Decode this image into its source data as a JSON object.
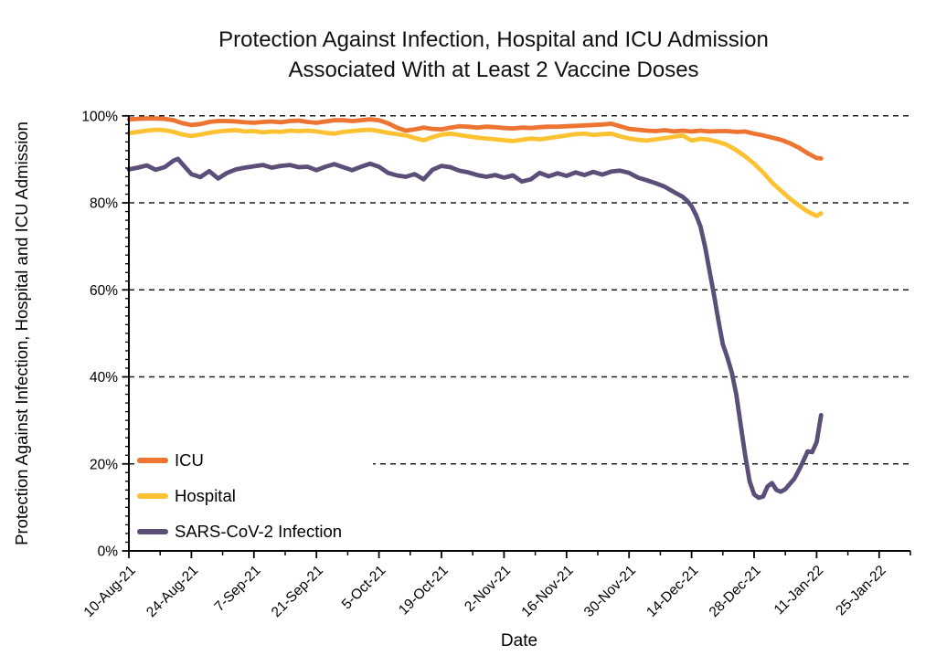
{
  "title": {
    "line1": "Protection Against Infection, Hospital and ICU Admission",
    "line2": "Associated With at Least 2 Vaccine Doses"
  },
  "axes": {
    "x_label": "Date",
    "y_label": "Protection Against Infection, Hospital and ICU Admission"
  },
  "chart_data": {
    "type": "line",
    "title": "Protection Against Infection, Hospital and ICU Admission Associated With at Least 2 Vaccine Doses",
    "xlabel": "Date",
    "ylabel": "Protection Against Infection, Hospital and ICU Admission",
    "x_unit": "days since 10-Aug-2021",
    "ylim": [
      0,
      100
    ],
    "grid": "horizontal dashed lines every 20%",
    "legend_position": "inside lower-left, white background",
    "colors": {
      "axis": "#000000",
      "gridline": "#1f1f1f",
      "background": "#ffffff"
    },
    "y_axis": {
      "ticks": [
        0,
        20,
        40,
        60,
        80,
        100
      ],
      "tick_labels": [
        "0%",
        "20%",
        "40%",
        "60%",
        "80%",
        "100%"
      ],
      "minor_tick_step": 2
    },
    "x_axis": {
      "tick_labels": [
        "10-Aug-21",
        "24-Aug-21",
        "7-Sep-21",
        "21-Sep-21",
        "5-Oct-21",
        "19-Oct-21",
        "2-Nov-21",
        "16-Nov-21",
        "30-Nov-21",
        "14-Dec-21",
        "28-Dec-21",
        "11-Jan-22",
        "25-Jan-22"
      ],
      "tick_days": [
        0,
        14,
        28,
        42,
        56,
        70,
        84,
        98,
        112,
        126,
        140,
        154,
        168
      ],
      "minor_tick_offset_days": 7,
      "axis_end_day": 175
    },
    "series": [
      {
        "name": "ICU",
        "color": "#ED7431",
        "points": [
          [
            0,
            99.2
          ],
          [
            2,
            99.3
          ],
          [
            4,
            99.4
          ],
          [
            6,
            99.4
          ],
          [
            8,
            99.3
          ],
          [
            10,
            99.0
          ],
          [
            12,
            98.3
          ],
          [
            14,
            97.9
          ],
          [
            16,
            98.1
          ],
          [
            18,
            98.6
          ],
          [
            20,
            98.8
          ],
          [
            22,
            98.8
          ],
          [
            24,
            98.7
          ],
          [
            26,
            98.5
          ],
          [
            28,
            98.4
          ],
          [
            30,
            98.6
          ],
          [
            32,
            98.7
          ],
          [
            34,
            98.5
          ],
          [
            36,
            98.8
          ],
          [
            38,
            98.9
          ],
          [
            40,
            98.6
          ],
          [
            42,
            98.4
          ],
          [
            44,
            98.7
          ],
          [
            46,
            99.0
          ],
          [
            48,
            99.0
          ],
          [
            50,
            98.8
          ],
          [
            52,
            99.0
          ],
          [
            54,
            99.2
          ],
          [
            56,
            99.0
          ],
          [
            58,
            98.3
          ],
          [
            60,
            97.3
          ],
          [
            62,
            96.6
          ],
          [
            64,
            96.9
          ],
          [
            66,
            97.3
          ],
          [
            68,
            97.0
          ],
          [
            70,
            96.9
          ],
          [
            72,
            97.3
          ],
          [
            74,
            97.6
          ],
          [
            76,
            97.5
          ],
          [
            78,
            97.3
          ],
          [
            80,
            97.5
          ],
          [
            82,
            97.4
          ],
          [
            84,
            97.2
          ],
          [
            86,
            97.1
          ],
          [
            88,
            97.3
          ],
          [
            90,
            97.2
          ],
          [
            92,
            97.4
          ],
          [
            94,
            97.5
          ],
          [
            96,
            97.5
          ],
          [
            98,
            97.6
          ],
          [
            100,
            97.7
          ],
          [
            102,
            97.8
          ],
          [
            104,
            97.9
          ],
          [
            106,
            98.0
          ],
          [
            108,
            98.2
          ],
          [
            110,
            97.6
          ],
          [
            112,
            97.0
          ],
          [
            114,
            96.8
          ],
          [
            116,
            96.6
          ],
          [
            118,
            96.5
          ],
          [
            120,
            96.7
          ],
          [
            122,
            96.4
          ],
          [
            124,
            96.6
          ],
          [
            126,
            96.4
          ],
          [
            128,
            96.6
          ],
          [
            130,
            96.4
          ],
          [
            132,
            96.5
          ],
          [
            134,
            96.5
          ],
          [
            136,
            96.3
          ],
          [
            138,
            96.4
          ],
          [
            140,
            95.9
          ],
          [
            142,
            95.5
          ],
          [
            144,
            95.0
          ],
          [
            146,
            94.5
          ],
          [
            148,
            93.7
          ],
          [
            150,
            92.7
          ],
          [
            152,
            91.4
          ],
          [
            154,
            90.3
          ],
          [
            155,
            90.2
          ]
        ]
      },
      {
        "name": "Hospital",
        "color": "#FDC233",
        "points": [
          [
            0,
            96.0
          ],
          [
            2,
            96.3
          ],
          [
            4,
            96.6
          ],
          [
            6,
            96.8
          ],
          [
            8,
            96.7
          ],
          [
            10,
            96.3
          ],
          [
            12,
            95.7
          ],
          [
            14,
            95.4
          ],
          [
            16,
            95.7
          ],
          [
            18,
            96.1
          ],
          [
            20,
            96.4
          ],
          [
            22,
            96.6
          ],
          [
            24,
            96.7
          ],
          [
            26,
            96.4
          ],
          [
            28,
            96.5
          ],
          [
            30,
            96.2
          ],
          [
            32,
            96.4
          ],
          [
            34,
            96.3
          ],
          [
            36,
            96.6
          ],
          [
            38,
            96.5
          ],
          [
            40,
            96.6
          ],
          [
            42,
            96.4
          ],
          [
            44,
            96.1
          ],
          [
            46,
            95.9
          ],
          [
            48,
            96.3
          ],
          [
            50,
            96.5
          ],
          [
            52,
            96.7
          ],
          [
            54,
            96.8
          ],
          [
            56,
            96.5
          ],
          [
            58,
            96.1
          ],
          [
            60,
            95.8
          ],
          [
            62,
            95.5
          ],
          [
            64,
            94.9
          ],
          [
            66,
            94.4
          ],
          [
            68,
            95.1
          ],
          [
            70,
            95.7
          ],
          [
            72,
            95.9
          ],
          [
            74,
            95.6
          ],
          [
            76,
            95.3
          ],
          [
            78,
            95.0
          ],
          [
            80,
            94.8
          ],
          [
            82,
            94.6
          ],
          [
            84,
            94.4
          ],
          [
            86,
            94.2
          ],
          [
            88,
            94.5
          ],
          [
            90,
            94.8
          ],
          [
            92,
            94.6
          ],
          [
            94,
            94.9
          ],
          [
            96,
            95.2
          ],
          [
            98,
            95.5
          ],
          [
            100,
            95.8
          ],
          [
            102,
            95.9
          ],
          [
            104,
            95.6
          ],
          [
            106,
            95.8
          ],
          [
            108,
            95.9
          ],
          [
            110,
            95.3
          ],
          [
            112,
            94.8
          ],
          [
            114,
            94.5
          ],
          [
            116,
            94.3
          ],
          [
            118,
            94.6
          ],
          [
            120,
            94.9
          ],
          [
            122,
            95.2
          ],
          [
            124,
            95.5
          ],
          [
            126,
            94.3
          ],
          [
            128,
            94.7
          ],
          [
            130,
            94.5
          ],
          [
            132,
            94.0
          ],
          [
            134,
            93.3
          ],
          [
            136,
            92.1
          ],
          [
            138,
            90.7
          ],
          [
            140,
            89.0
          ],
          [
            142,
            87.0
          ],
          [
            144,
            84.7
          ],
          [
            146,
            82.8
          ],
          [
            148,
            81.0
          ],
          [
            150,
            79.4
          ],
          [
            152,
            78.0
          ],
          [
            154,
            77.0
          ],
          [
            155,
            77.6
          ]
        ]
      },
      {
        "name": "SARS-CoV-2 Infection",
        "color": "#5B4E79",
        "points": [
          [
            0,
            87.7
          ],
          [
            2,
            88.1
          ],
          [
            4,
            88.6
          ],
          [
            6,
            87.6
          ],
          [
            8,
            88.2
          ],
          [
            10,
            89.7
          ],
          [
            11,
            90.1
          ],
          [
            12,
            88.9
          ],
          [
            14,
            86.6
          ],
          [
            16,
            85.9
          ],
          [
            18,
            87.3
          ],
          [
            20,
            85.6
          ],
          [
            22,
            86.9
          ],
          [
            24,
            87.7
          ],
          [
            26,
            88.1
          ],
          [
            28,
            88.4
          ],
          [
            30,
            88.7
          ],
          [
            32,
            88.1
          ],
          [
            34,
            88.5
          ],
          [
            36,
            88.7
          ],
          [
            38,
            88.2
          ],
          [
            40,
            88.3
          ],
          [
            42,
            87.5
          ],
          [
            44,
            88.3
          ],
          [
            46,
            88.9
          ],
          [
            48,
            88.2
          ],
          [
            50,
            87.5
          ],
          [
            52,
            88.3
          ],
          [
            54,
            89.0
          ],
          [
            56,
            88.3
          ],
          [
            58,
            86.9
          ],
          [
            60,
            86.3
          ],
          [
            62,
            86.0
          ],
          [
            64,
            86.6
          ],
          [
            66,
            85.4
          ],
          [
            68,
            87.6
          ],
          [
            70,
            88.5
          ],
          [
            72,
            88.2
          ],
          [
            74,
            87.4
          ],
          [
            76,
            87.0
          ],
          [
            78,
            86.4
          ],
          [
            80,
            86.0
          ],
          [
            82,
            86.4
          ],
          [
            84,
            85.8
          ],
          [
            86,
            86.3
          ],
          [
            88,
            84.9
          ],
          [
            90,
            85.4
          ],
          [
            92,
            86.9
          ],
          [
            94,
            86.1
          ],
          [
            96,
            86.8
          ],
          [
            98,
            86.2
          ],
          [
            100,
            87.0
          ],
          [
            102,
            86.4
          ],
          [
            104,
            87.1
          ],
          [
            106,
            86.5
          ],
          [
            108,
            87.2
          ],
          [
            110,
            87.4
          ],
          [
            112,
            86.9
          ],
          [
            114,
            85.8
          ],
          [
            116,
            85.2
          ],
          [
            118,
            84.5
          ],
          [
            120,
            83.7
          ],
          [
            122,
            82.5
          ],
          [
            124,
            81.4
          ],
          [
            125,
            80.5
          ],
          [
            126,
            79.2
          ],
          [
            127,
            77.2
          ],
          [
            128,
            74.5
          ],
          [
            129,
            70.0
          ],
          [
            130,
            64.5
          ],
          [
            131,
            59.0
          ],
          [
            132,
            53.0
          ],
          [
            133,
            47.5
          ],
          [
            134,
            44.5
          ],
          [
            135,
            41.0
          ],
          [
            136,
            36.0
          ],
          [
            137,
            29.0
          ],
          [
            138,
            22.0
          ],
          [
            139,
            16.0
          ],
          [
            140,
            13.0
          ],
          [
            141,
            12.2
          ],
          [
            142,
            12.5
          ],
          [
            143,
            14.8
          ],
          [
            144,
            15.6
          ],
          [
            145,
            14.0
          ],
          [
            146,
            13.6
          ],
          [
            147,
            14.2
          ],
          [
            148,
            15.4
          ],
          [
            149,
            16.6
          ],
          [
            150,
            18.5
          ],
          [
            151,
            20.6
          ],
          [
            152,
            22.9
          ],
          [
            153,
            22.7
          ],
          [
            154,
            25.0
          ],
          [
            155,
            31.2
          ]
        ]
      }
    ]
  }
}
